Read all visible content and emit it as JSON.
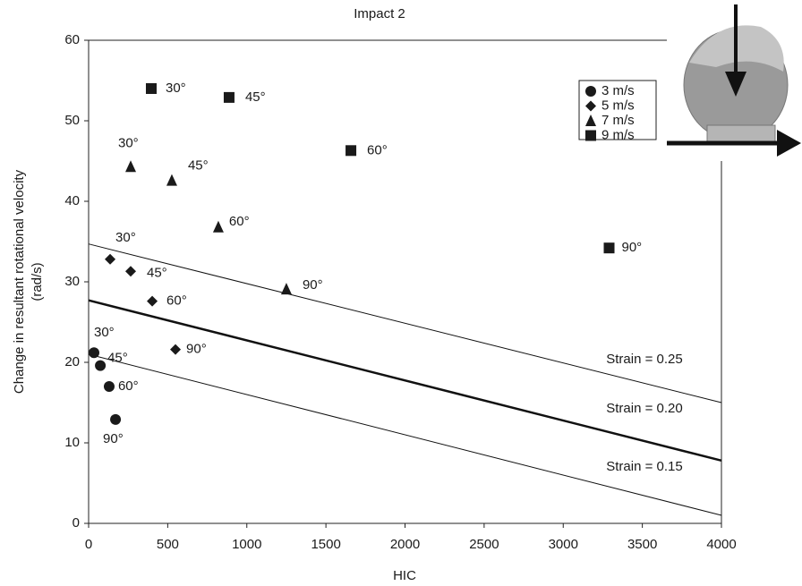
{
  "chart_data": {
    "type": "scatter",
    "title": "Impact 2",
    "x_label": "HIC",
    "y_label_lines": [
      "Change in resultant rotational velocity",
      "(rad/s)"
    ],
    "xlim": [
      0,
      4000
    ],
    "xticks": [
      0,
      500,
      1000,
      1500,
      2000,
      2500,
      3000,
      3500,
      4000
    ],
    "ylim": [
      0,
      60
    ],
    "yticks": [
      0,
      10,
      20,
      30,
      40,
      50,
      60
    ],
    "grid": false,
    "legend": "upper right",
    "series": [
      {
        "name": "3 m/s",
        "marker": "circle",
        "color": "#1a1a1a",
        "x": [
          34,
          74,
          130,
          170
        ],
        "values": [
          21.2,
          19.6,
          17,
          12.9
        ],
        "point_labels": [
          "30°",
          "45°",
          "60°",
          "90°"
        ]
      },
      {
        "name": "5 m/s",
        "marker": "diamond",
        "color": "#1a1a1a",
        "x": [
          136,
          266,
          402,
          549
        ],
        "values": [
          32.8,
          31.3,
          27.6,
          21.6
        ],
        "point_labels": [
          "30°",
          "45°",
          "60°",
          "90°"
        ]
      },
      {
        "name": "7 m/s",
        "marker": "triangle",
        "color": "#1a1a1a",
        "x": [
          266,
          526,
          820,
          1250
        ],
        "values": [
          44.3,
          42.6,
          36.8,
          29.1
        ],
        "point_labels": [
          "30°",
          "45°",
          "60°",
          "90°"
        ]
      },
      {
        "name": "9 m/s",
        "marker": "square",
        "color": "#1a1a1a",
        "x": [
          396,
          888,
          1658,
          3290
        ],
        "values": [
          54,
          52.9,
          46.3,
          34.2
        ],
        "point_labels": [
          "30°",
          "45°",
          "60°",
          "90°"
        ]
      }
    ],
    "lines": [
      {
        "name": "Strain = 0.25",
        "x": [
          0,
          4000
        ],
        "values": [
          34.7,
          15
        ],
        "width": 1
      },
      {
        "name": "Strain = 0.20",
        "x": [
          0,
          4000
        ],
        "values": [
          27.7,
          7.8
        ],
        "width": 2.5
      },
      {
        "name": "Strain = 0.15",
        "x": [
          0,
          4000
        ],
        "values": [
          21,
          1
        ],
        "width": 1
      }
    ]
  }
}
